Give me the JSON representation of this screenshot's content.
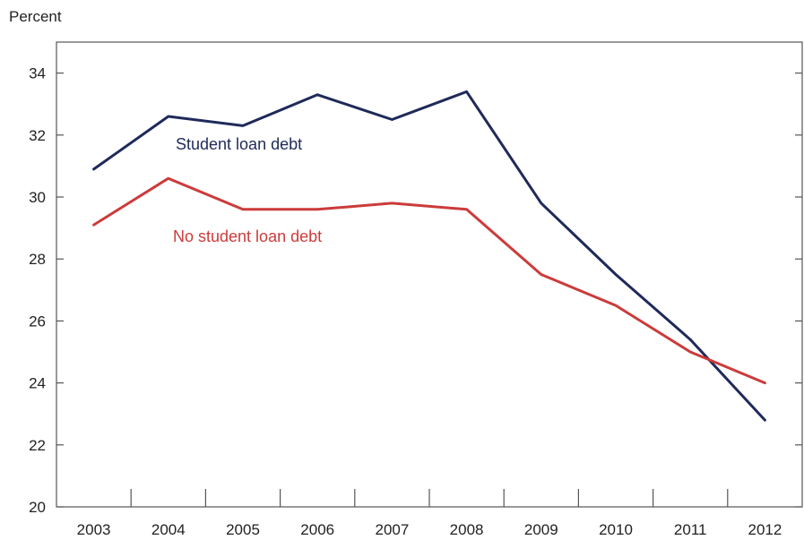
{
  "chart_data": {
    "type": "line",
    "title": "",
    "xlabel": "",
    "ylabel": "Percent",
    "x": [
      "2003",
      "2004",
      "2005",
      "2006",
      "2007",
      "2008",
      "2009",
      "2010",
      "2011",
      "2012"
    ],
    "ylim": [
      20,
      35
    ],
    "yticks": [
      20,
      22,
      24,
      26,
      28,
      30,
      32,
      34
    ],
    "grid": false,
    "legend": "inline labels",
    "series": [
      {
        "name": "Student loan debt",
        "color": "#1f2a5a",
        "values": [
          30.9,
          32.6,
          32.3,
          33.3,
          32.5,
          33.4,
          29.8,
          27.5,
          25.4,
          22.8
        ]
      },
      {
        "name": "No student loan debt",
        "color": "#cc3b3b",
        "values": [
          29.1,
          30.6,
          29.6,
          29.6,
          29.8,
          29.6,
          27.5,
          26.5,
          25.0,
          24.0
        ]
      }
    ]
  }
}
